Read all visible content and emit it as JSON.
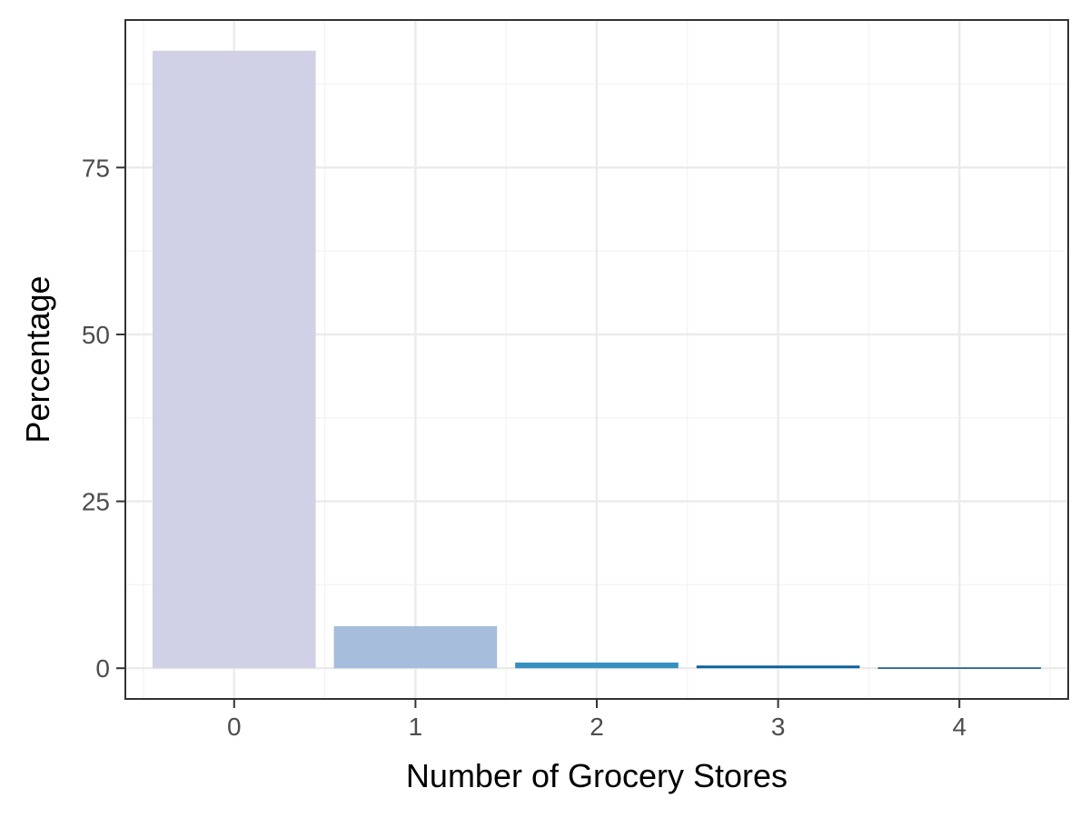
{
  "chart_data": {
    "type": "bar",
    "categories": [
      "0",
      "1",
      "2",
      "3",
      "4"
    ],
    "values": [
      92.5,
      6.3,
      0.85,
      0.4,
      0.12
    ],
    "bar_colors": [
      "#d0d1e6",
      "#a6bddb",
      "#3690c0",
      "#0c6199",
      "#034e7b"
    ],
    "title": "",
    "xlabel": "Number of Grocery Stores",
    "ylabel": "Percentage",
    "ylim": [
      -4.6,
      97.1
    ],
    "yticks": [
      0,
      25,
      50,
      75
    ],
    "ytick_labels": [
      "0",
      "25",
      "50",
      "75"
    ],
    "grid": true,
    "legend": "none"
  },
  "colors": {
    "panel_border": "#333333",
    "grid_major": "#ebebeb",
    "grid_minor": "#f3f3f3",
    "tick_text": "#4d4d4d",
    "title_text": "#000000"
  }
}
